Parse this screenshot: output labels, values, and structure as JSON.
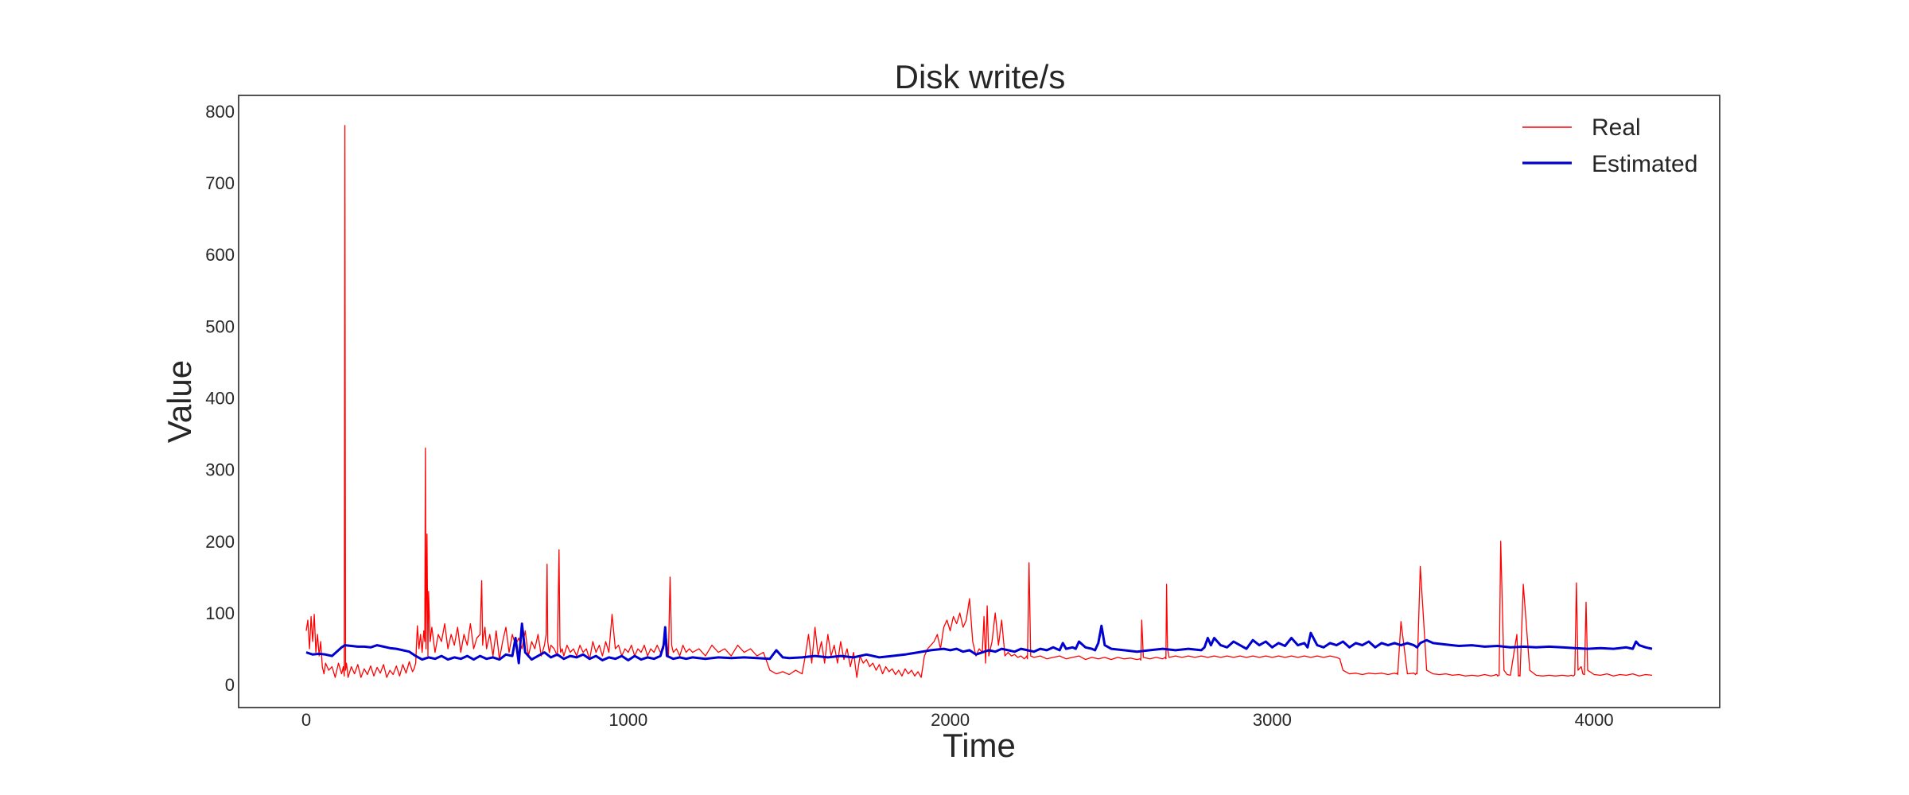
{
  "chart_data": {
    "type": "line",
    "title": "Disk write/s",
    "xlabel": "Time",
    "ylabel": "Value",
    "xlim": [
      -210,
      4390
    ],
    "ylim": [
      -32,
      822
    ],
    "xticks": [
      0,
      1000,
      2000,
      3000,
      4000
    ],
    "yticks": [
      0,
      100,
      200,
      300,
      400,
      500,
      600,
      700,
      800
    ],
    "grid": false,
    "legend_position": "top-right",
    "series": [
      {
        "name": "Real",
        "color": "#ff0000",
        "x": [
          0,
          5,
          10,
          15,
          20,
          25,
          30,
          35,
          40,
          45,
          50,
          55,
          60,
          70,
          80,
          90,
          100,
          110,
          115,
          118,
          120,
          122,
          125,
          130,
          140,
          150,
          160,
          170,
          180,
          190,
          200,
          210,
          220,
          230,
          240,
          250,
          260,
          270,
          280,
          290,
          300,
          310,
          320,
          330,
          335,
          340,
          345,
          350,
          355,
          360,
          365,
          368,
          370,
          372,
          375,
          378,
          380,
          385,
          390,
          400,
          410,
          420,
          430,
          440,
          450,
          460,
          470,
          480,
          490,
          500,
          510,
          520,
          530,
          540,
          545,
          548,
          550,
          555,
          560,
          570,
          580,
          590,
          600,
          610,
          620,
          630,
          640,
          650,
          660,
          670,
          680,
          690,
          700,
          710,
          720,
          730,
          740,
          745,
          748,
          750,
          755,
          760,
          770,
          780,
          785,
          788,
          790,
          795,
          800,
          810,
          820,
          830,
          840,
          850,
          860,
          870,
          880,
          890,
          900,
          910,
          920,
          930,
          940,
          950,
          960,
          970,
          980,
          990,
          1000,
          1010,
          1020,
          1030,
          1040,
          1050,
          1060,
          1070,
          1080,
          1090,
          1100,
          1110,
          1115,
          1120,
          1125,
          1130,
          1135,
          1140,
          1150,
          1160,
          1170,
          1180,
          1190,
          1200,
          1220,
          1240,
          1260,
          1280,
          1300,
          1320,
          1340,
          1360,
          1380,
          1400,
          1420,
          1440,
          1460,
          1480,
          1500,
          1520,
          1540,
          1550,
          1560,
          1570,
          1580,
          1590,
          1600,
          1610,
          1620,
          1630,
          1640,
          1650,
          1660,
          1670,
          1680,
          1690,
          1700,
          1710,
          1720,
          1730,
          1740,
          1750,
          1760,
          1770,
          1780,
          1790,
          1800,
          1810,
          1820,
          1830,
          1840,
          1850,
          1860,
          1870,
          1880,
          1890,
          1900,
          1910,
          1920,
          1930,
          1940,
          1950,
          1960,
          1970,
          1980,
          1990,
          2000,
          2010,
          2020,
          2030,
          2040,
          2050,
          2060,
          2070,
          2080,
          2090,
          2100,
          2105,
          2110,
          2115,
          2120,
          2130,
          2140,
          2150,
          2160,
          2170,
          2180,
          2190,
          2200,
          2210,
          2220,
          2230,
          2235,
          2238,
          2240,
          2245,
          2250,
          2260,
          2280,
          2300,
          2320,
          2340,
          2360,
          2380,
          2400,
          2420,
          2440,
          2460,
          2480,
          2500,
          2520,
          2540,
          2560,
          2580,
          2590,
          2592,
          2595,
          2600,
          2620,
          2640,
          2660,
          2668,
          2670,
          2672,
          2675,
          2680,
          2700,
          2720,
          2740,
          2760,
          2780,
          2800,
          2820,
          2840,
          2860,
          2880,
          2900,
          2920,
          2940,
          2960,
          2980,
          3000,
          3020,
          3040,
          3060,
          3080,
          3100,
          3120,
          3140,
          3160,
          3180,
          3200,
          3210,
          3220,
          3240,
          3260,
          3280,
          3300,
          3320,
          3340,
          3360,
          3380,
          3385,
          3388,
          3390,
          3400,
          3420,
          3440,
          3445,
          3448,
          3450,
          3460,
          3480,
          3500,
          3520,
          3540,
          3560,
          3580,
          3600,
          3620,
          3640,
          3660,
          3680,
          3690,
          3695,
          3698,
          3700,
          3705,
          3710,
          3720,
          3730,
          3740,
          3760,
          3765,
          3768,
          3770,
          3780,
          3800,
          3820,
          3840,
          3860,
          3880,
          3900,
          3920,
          3930,
          3935,
          3938,
          3940,
          3945,
          3950,
          3960,
          3965,
          3968,
          3970,
          3975,
          3980,
          4000,
          4020,
          4040,
          4060,
          4080,
          4100,
          4120,
          4140,
          4160,
          4180
        ],
        "y": [
          75,
          90,
          50,
          95,
          60,
          98,
          45,
          70,
          40,
          60,
          25,
          15,
          30,
          20,
          25,
          10,
          30,
          15,
          25,
          12,
          780,
          20,
          30,
          10,
          25,
          15,
          28,
          10,
          22,
          14,
          26,
          12,
          24,
          16,
          28,
          10,
          20,
          14,
          26,
          12,
          28,
          16,
          32,
          18,
          22,
          30,
          82,
          50,
          70,
          45,
          75,
          60,
          330,
          50,
          210,
          40,
          130,
          60,
          80,
          45,
          70,
          60,
          85,
          50,
          70,
          55,
          80,
          45,
          70,
          55,
          85,
          50,
          65,
          70,
          145,
          55,
          65,
          80,
          50,
          70,
          40,
          75,
          35,
          60,
          80,
          45,
          70,
          55,
          65,
          50,
          75,
          40,
          60,
          50,
          70,
          40,
          55,
          70,
          168,
          60,
          45,
          55,
          50,
          40,
          188,
          55,
          45,
          50,
          40,
          55,
          45,
          50,
          40,
          55,
          45,
          50,
          35,
          60,
          45,
          55,
          40,
          60,
          45,
          98,
          50,
          55,
          40,
          50,
          45,
          55,
          40,
          50,
          45,
          55,
          40,
          50,
          45,
          55,
          45,
          50,
          80,
          60,
          40,
          150,
          55,
          45,
          50,
          40,
          55,
          45,
          50,
          45,
          50,
          40,
          55,
          45,
          50,
          40,
          55,
          45,
          50,
          40,
          45,
          20,
          15,
          18,
          14,
          20,
          15,
          40,
          70,
          30,
          80,
          40,
          60,
          30,
          70,
          40,
          55,
          30,
          60,
          35,
          50,
          25,
          45,
          10,
          40,
          30,
          35,
          25,
          30,
          20,
          28,
          15,
          25,
          18,
          22,
          14,
          20,
          12,
          22,
          15,
          20,
          12,
          18,
          10,
          40,
          50,
          55,
          60,
          70,
          50,
          80,
          90,
          75,
          95,
          85,
          100,
          80,
          90,
          120,
          60,
          40,
          50,
          45,
          95,
          30,
          110,
          40,
          60,
          100,
          55,
          90,
          40,
          45,
          40,
          42,
          38,
          40,
          36,
          38,
          40,
          36,
          170,
          40,
          38,
          40,
          36,
          38,
          40,
          36,
          38,
          40,
          35,
          38,
          36,
          38,
          35,
          38,
          36,
          37,
          35,
          36,
          34,
          90,
          38,
          36,
          38,
          36,
          38,
          36,
          140,
          50,
          38,
          40,
          38,
          40,
          38,
          40,
          38,
          40,
          38,
          40,
          38,
          40,
          38,
          40,
          38,
          40,
          38,
          40,
          38,
          40,
          38,
          40,
          38,
          40,
          38,
          40,
          38,
          36,
          20,
          15,
          16,
          14,
          16,
          15,
          16,
          14,
          16,
          15,
          16,
          14,
          88,
          15,
          16,
          14,
          16,
          15,
          165,
          20,
          15,
          14,
          15,
          13,
          14,
          12,
          13,
          12,
          14,
          12,
          13,
          14,
          14,
          12,
          13,
          200,
          20,
          14,
          13,
          70,
          12,
          13,
          12,
          140,
          20,
          13,
          12,
          13,
          12,
          13,
          12,
          13,
          12,
          13,
          14,
          142,
          20,
          25,
          15,
          14,
          14,
          115,
          20,
          14,
          13,
          15,
          12,
          14,
          13,
          15,
          12,
          14,
          13
        ]
      },
      {
        "name": "Estimated",
        "color": "#0000d0",
        "x": [
          0,
          20,
          40,
          60,
          80,
          100,
          110,
          120,
          140,
          160,
          180,
          200,
          220,
          240,
          260,
          280,
          300,
          320,
          340,
          360,
          380,
          400,
          420,
          440,
          460,
          480,
          500,
          520,
          540,
          560,
          580,
          600,
          620,
          640,
          650,
          660,
          670,
          680,
          700,
          720,
          740,
          760,
          780,
          800,
          820,
          840,
          860,
          880,
          900,
          920,
          940,
          960,
          980,
          1000,
          1020,
          1040,
          1060,
          1080,
          1100,
          1110,
          1115,
          1120,
          1130,
          1140,
          1160,
          1180,
          1200,
          1240,
          1280,
          1320,
          1360,
          1400,
          1440,
          1460,
          1480,
          1500,
          1540,
          1580,
          1620,
          1660,
          1700,
          1740,
          1780,
          1820,
          1860,
          1900,
          1940,
          1980,
          2000,
          2020,
          2040,
          2060,
          2080,
          2100,
          2120,
          2140,
          2160,
          2180,
          2200,
          2220,
          2240,
          2260,
          2280,
          2300,
          2320,
          2340,
          2350,
          2360,
          2380,
          2390,
          2400,
          2420,
          2440,
          2450,
          2460,
          2470,
          2480,
          2500,
          2540,
          2580,
          2620,
          2660,
          2700,
          2740,
          2780,
          2790,
          2800,
          2810,
          2820,
          2840,
          2860,
          2880,
          2900,
          2920,
          2940,
          2960,
          2980,
          3000,
          3020,
          3040,
          3060,
          3080,
          3100,
          3110,
          3120,
          3140,
          3160,
          3180,
          3200,
          3220,
          3240,
          3260,
          3280,
          3300,
          3320,
          3340,
          3360,
          3380,
          3400,
          3420,
          3440,
          3450,
          3460,
          3480,
          3500,
          3540,
          3580,
          3620,
          3660,
          3700,
          3740,
          3780,
          3820,
          3860,
          3900,
          3940,
          3980,
          4020,
          4060,
          4100,
          4120,
          4130,
          4140,
          4160,
          4180
        ],
        "y": [
          45,
          42,
          43,
          42,
          40,
          48,
          52,
          55,
          54,
          53,
          53,
          52,
          55,
          53,
          51,
          50,
          48,
          46,
          40,
          35,
          38,
          36,
          40,
          35,
          38,
          36,
          40,
          35,
          40,
          36,
          38,
          35,
          42,
          40,
          65,
          30,
          85,
          45,
          35,
          40,
          45,
          38,
          42,
          36,
          40,
          38,
          42,
          36,
          40,
          34,
          38,
          36,
          40,
          34,
          40,
          35,
          38,
          36,
          40,
          55,
          80,
          40,
          38,
          36,
          38,
          36,
          38,
          36,
          38,
          37,
          38,
          37,
          36,
          48,
          38,
          37,
          38,
          40,
          38,
          40,
          38,
          42,
          38,
          40,
          42,
          45,
          48,
          50,
          48,
          50,
          46,
          48,
          42,
          45,
          48,
          46,
          50,
          48,
          46,
          50,
          48,
          46,
          50,
          48,
          52,
          48,
          58,
          50,
          52,
          50,
          60,
          52,
          50,
          48,
          58,
          82,
          55,
          50,
          48,
          46,
          48,
          50,
          48,
          50,
          48,
          52,
          65,
          55,
          65,
          55,
          52,
          60,
          55,
          50,
          62,
          55,
          60,
          52,
          58,
          54,
          65,
          55,
          58,
          52,
          72,
          55,
          52,
          58,
          55,
          60,
          52,
          58,
          55,
          60,
          52,
          58,
          55,
          58,
          55,
          58,
          55,
          52,
          58,
          62,
          58,
          56,
          54,
          55,
          53,
          54,
          52,
          53,
          52,
          53,
          52,
          51,
          50,
          51,
          50,
          52,
          50,
          60,
          55,
          52,
          50
        ]
      }
    ]
  }
}
